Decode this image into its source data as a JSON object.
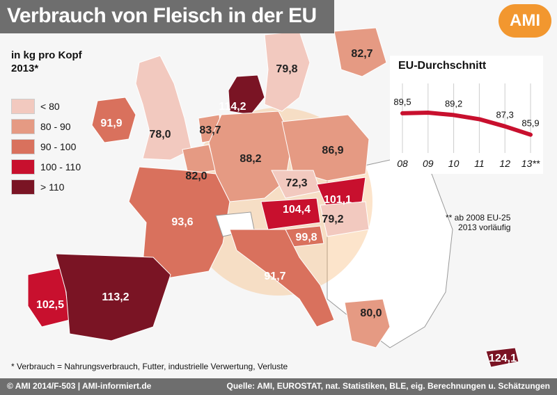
{
  "header": {
    "title": "Verbrauch von Fleisch in der EU",
    "logo_text": "AMI"
  },
  "unit_label": [
    "in kg pro Kopf",
    "2013*"
  ],
  "legend": [
    {
      "label": "< 80",
      "color": "#f2c9bf"
    },
    {
      "label": "80 - 90",
      "color": "#e59a83"
    },
    {
      "label": "90 - 100",
      "color": "#d9715d"
    },
    {
      "label": "100 - 110",
      "color": "#c8102e"
    },
    {
      "label": "> 110",
      "color": "#7a1424"
    }
  ],
  "footnote": "* Verbrauch = Nahrungsverbrauch, Futter, industrielle Verwertung, Verluste",
  "footer": {
    "copyright": "© AMI 2014/F-503 | AMI-informiert.de",
    "source": "Quelle: AMI, EUROSTAT, nat. Statistiken, BLE, eig. Berechnungen u. Schätzungen"
  },
  "inset_note": [
    "** ab 2008 EU-25",
    "2013 vorläufig"
  ],
  "chart_data": [
    {
      "type": "map",
      "title": "Verbrauch von Fleisch in der EU",
      "unit": "in kg pro Kopf 2013*",
      "legend_bins": [
        "< 80",
        "80 - 90",
        "90 - 100",
        "100 - 110",
        "> 110"
      ],
      "values": [
        {
          "label": "91,9",
          "value": 91.9,
          "bin": 2,
          "text_color": "#ffffff"
        },
        {
          "label": "78,0",
          "value": 78.0,
          "bin": 0,
          "text_color": "#222222"
        },
        {
          "label": "79,8",
          "value": 79.8,
          "bin": 0,
          "text_color": "#222222"
        },
        {
          "label": "82,7",
          "value": 82.7,
          "bin": 1,
          "text_color": "#222222"
        },
        {
          "label": "114,2",
          "value": 114.2,
          "bin": 4,
          "text_color": "#ffffff"
        },
        {
          "label": "83,7",
          "value": 83.7,
          "bin": 1,
          "text_color": "#222222"
        },
        {
          "label": "82,0",
          "value": 82.0,
          "bin": 1,
          "text_color": "#222222"
        },
        {
          "label": "88,2",
          "value": 88.2,
          "bin": 1,
          "text_color": "#222222"
        },
        {
          "label": "86,9",
          "value": 86.9,
          "bin": 1,
          "text_color": "#222222"
        },
        {
          "label": "72,3",
          "value": 72.3,
          "bin": 0,
          "text_color": "#222222"
        },
        {
          "label": "101,1",
          "value": 101.1,
          "bin": 3,
          "text_color": "#ffffff"
        },
        {
          "label": "104,4",
          "value": 104.4,
          "bin": 3,
          "text_color": "#ffffff"
        },
        {
          "label": "79,2",
          "value": 79.2,
          "bin": 0,
          "text_color": "#222222"
        },
        {
          "label": "93,6",
          "value": 93.6,
          "bin": 2,
          "text_color": "#ffffff"
        },
        {
          "label": "99,8",
          "value": 99.8,
          "bin": 2,
          "text_color": "#ffffff"
        },
        {
          "label": "91,7",
          "value": 91.7,
          "bin": 2,
          "text_color": "#ffffff"
        },
        {
          "label": "113,2",
          "value": 113.2,
          "bin": 4,
          "text_color": "#ffffff"
        },
        {
          "label": "102,5",
          "value": 102.5,
          "bin": 3,
          "text_color": "#ffffff"
        },
        {
          "label": "80,0",
          "value": 80.0,
          "bin": 1,
          "text_color": "#222222"
        },
        {
          "label": "124,1",
          "value": 124.1,
          "bin": 4,
          "text_color": "#ffffff"
        }
      ]
    },
    {
      "type": "line",
      "title": "EU-Durchschnitt",
      "x": [
        "08",
        "09",
        "10",
        "11",
        "12",
        "13**"
      ],
      "values": [
        89.5,
        null,
        89.2,
        null,
        87.3,
        85.9
      ],
      "line_points": [
        89.5,
        89.6,
        89.2,
        88.5,
        87.3,
        85.9
      ],
      "ylim": [
        84,
        91
      ],
      "color": "#c8102e"
    }
  ]
}
